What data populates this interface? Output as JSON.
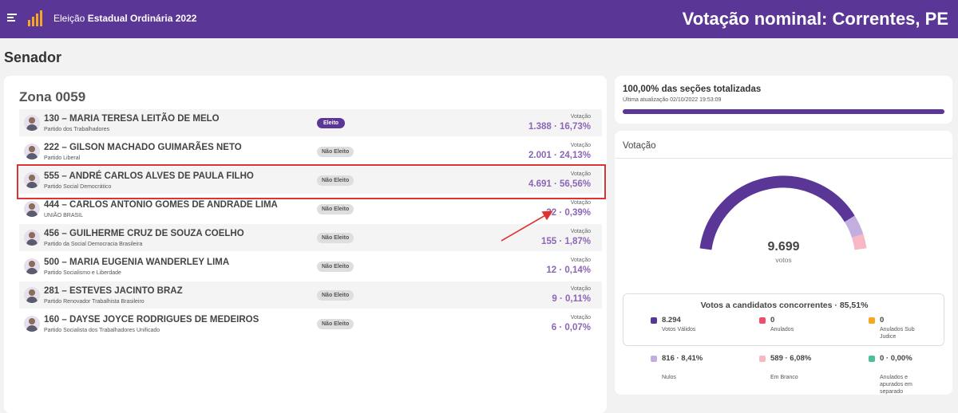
{
  "header": {
    "app_title_prefix": "Eleição",
    "app_title_bold": "Estadual Ordinária 2022",
    "page_heading": "Votação nominal: Correntes, PE"
  },
  "office": "Senador",
  "zone": {
    "title": "Zona 0059",
    "vote_label": "Votação",
    "candidates": [
      {
        "name": "130 – MARIA TERESA LEITÃO DE MELO",
        "party": "Partido dos Trabalhadores",
        "status": "Eleito",
        "votes": "1.388 · 16,73%"
      },
      {
        "name": "222 – GILSON MACHADO GUIMARÃES NETO",
        "party": "Partido Liberal",
        "status": "Não Eleito",
        "votes": "2.001 · 24,13%"
      },
      {
        "name": "555 – ANDRÉ CARLOS ALVES DE PAULA FILHO",
        "party": "Partido Social Democrático",
        "status": "Não Eleito",
        "votes": "4.691 · 56,56%"
      },
      {
        "name": "444 – CARLOS ANTONIO GOMES DE ANDRADE LIMA",
        "party": "UNIÃO BRASIL",
        "status": "Não Eleito",
        "votes": "32 · 0,39%"
      },
      {
        "name": "456 – GUILHERME CRUZ DE SOUZA COELHO",
        "party": "Partido da Social Democracia Brasileira",
        "status": "Não Eleito",
        "votes": "155 · 1,87%"
      },
      {
        "name": "500 – MARIA EUGENIA WANDERLEY LIMA",
        "party": "Partido Socialismo e Liberdade",
        "status": "Não Eleito",
        "votes": "12 · 0,14%"
      },
      {
        "name": "281 – ESTEVES JACINTO BRAZ",
        "party": "Partido Renovador Trabalhista Brasileiro",
        "status": "Não Eleito",
        "votes": "9 · 0,11%"
      },
      {
        "name": "160 – DAYSE JOYCE RODRIGUES DE MEDEIROS",
        "party": "Partido Socialista dos Trabalhadores Unificado",
        "status": "Não Eleito",
        "votes": "6 · 0,07%"
      }
    ]
  },
  "sections": {
    "title": "100,00% das seções totalizadas",
    "updated": "Última atualização 02/10/2022 19:53:09",
    "progress_fraction": 1.0
  },
  "votes_panel": {
    "title": "Votação",
    "total": "9.699",
    "total_label": "votos",
    "gauge_fractions": {
      "valid": 0.8551,
      "null": 0.0841,
      "blank": 0.0608
    },
    "summary_title": "Votos a candidatos concorrentes · 85,51%",
    "legend": [
      {
        "value": "8.294",
        "label": "Votos Válidos",
        "color": "#5a3696"
      },
      {
        "value": "0",
        "label": "Anulados",
        "color": "#ef4e6b"
      },
      {
        "value": "0",
        "label": "Anulados Sub Judice",
        "color": "#f5a623"
      },
      {
        "value": "816 · 8,41%",
        "label": "Nulos",
        "color": "#c3aee0"
      },
      {
        "value": "589 · 6,08%",
        "label": "Em Branco",
        "color": "#f8b8c3"
      },
      {
        "value": "0 · 0,00%",
        "label": "Anulados e apurados em separado",
        "color": "#4dbf9c"
      }
    ]
  },
  "colors": {
    "brand": "#5a3696",
    "accent_text": "#8c65b5",
    "highlight": "#dd3333"
  }
}
